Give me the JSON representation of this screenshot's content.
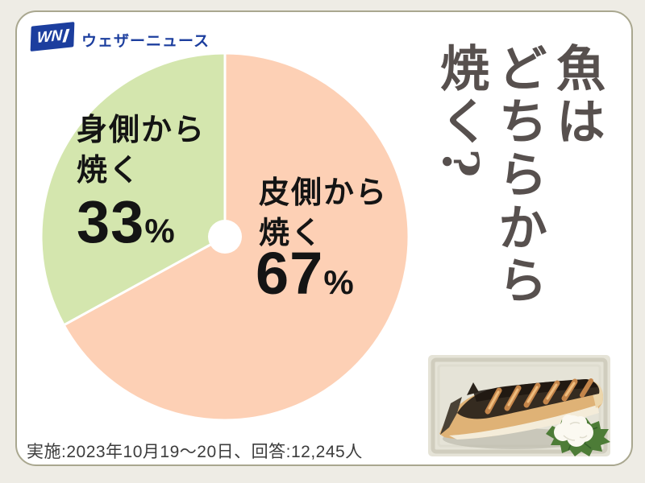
{
  "page": {
    "background_color": "#eeece5",
    "card_background": "#ffffff",
    "card_border_color": "#a9a78f"
  },
  "header": {
    "logo_mark_text": "WN",
    "logo_text": "ウェザーニュース",
    "logo_color": "#1c3e9e"
  },
  "title": {
    "text": "魚はどちらから焼く?",
    "columns": [
      "魚は",
      "どちらから",
      "焼く?"
    ],
    "color": "#57504e"
  },
  "chart_data": {
    "type": "pie",
    "title": "魚はどちらから焼く?",
    "donut_hole": true,
    "hole_radius_ratio": 0.09,
    "start_angle_deg": 0,
    "direction": "clockwise",
    "legend": "none",
    "segments": [
      {
        "key": "skin-side",
        "label": "皮側から焼く",
        "label_line1": "皮側から",
        "label_line2": "焼く",
        "value": 67,
        "unit": "%",
        "color": "#fdd0b5"
      },
      {
        "key": "flesh-side",
        "label": "身側から焼く",
        "label_line1": "身側から",
        "label_line2": "焼く",
        "value": 33,
        "unit": "%",
        "color": "#d4e6ae"
      }
    ]
  },
  "footer": {
    "survey_note": "実施:2023年10月19〜20日、回答:12,245人"
  },
  "illustration": {
    "name": "grilled-fish-with-shiso-and-daikon-illustration"
  }
}
